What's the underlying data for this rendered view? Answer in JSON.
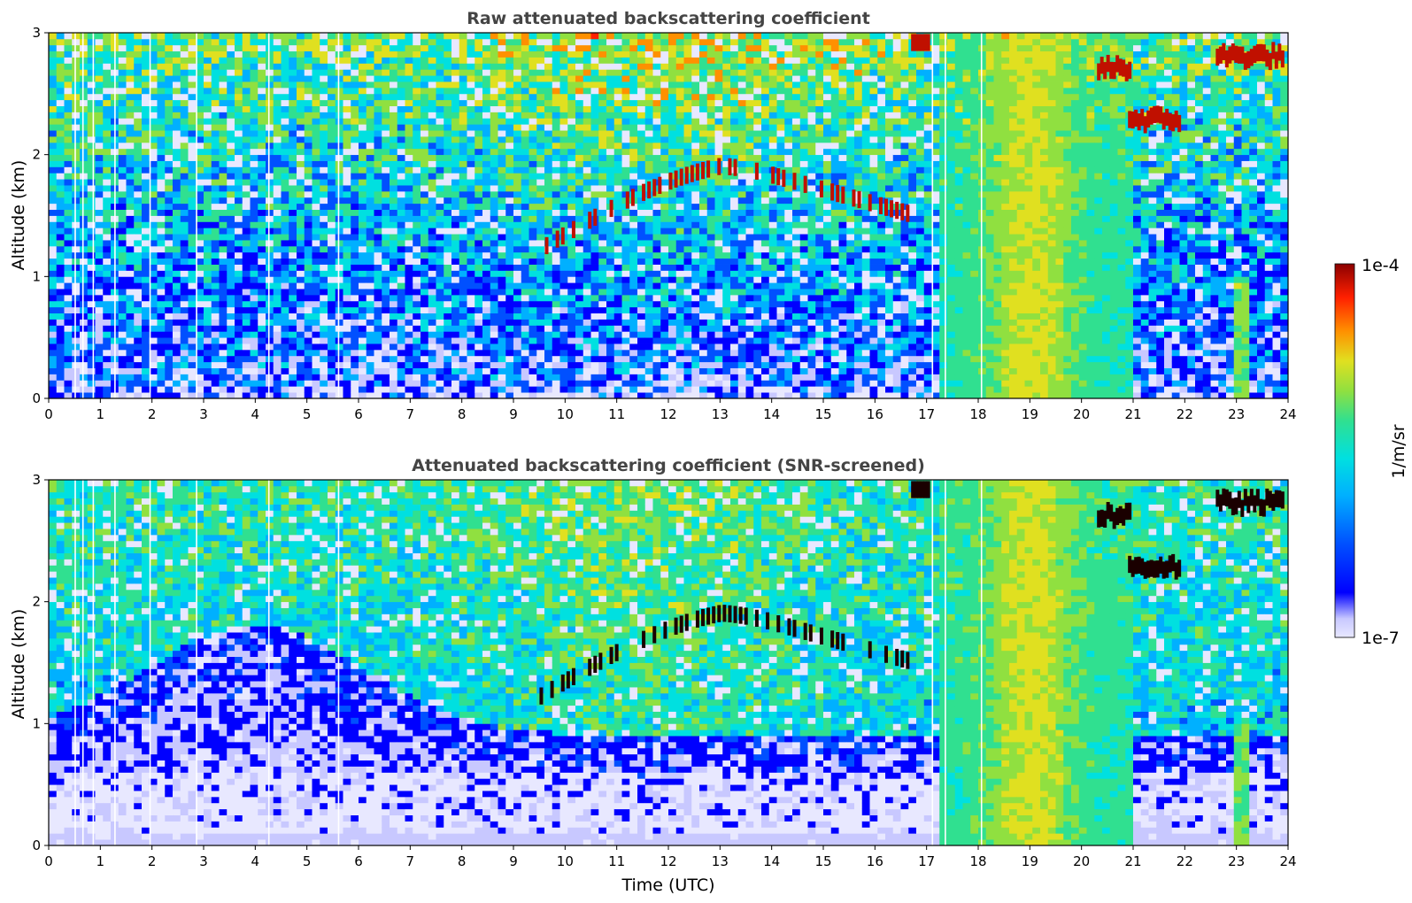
{
  "colors": {
    "colormap": [
      "#e8e8ff",
      "#c8c8ff",
      "#0000ff",
      "#0050ff",
      "#00b0ff",
      "#00e0e0",
      "#30e090",
      "#90e040",
      "#e0e020",
      "#ff9000",
      "#ff2000",
      "#8b0000"
    ],
    "background": "#ffffff",
    "title": "#444444"
  },
  "colorbar": {
    "max_label": "1e-4",
    "min_label": "1e-7",
    "unit_label": "1/m/sr",
    "scale": "log",
    "range": [
      1e-07,
      0.0001
    ]
  },
  "chart_data": [
    {
      "type": "heatmap",
      "title": "Raw attenuated backscattering coefficient",
      "xlabel": "",
      "ylabel": "Altitude (km)",
      "xlim": [
        0,
        24
      ],
      "ylim": [
        0,
        3
      ],
      "x_ticks": [
        "0",
        "1",
        "2",
        "3",
        "4",
        "5",
        "6",
        "7",
        "8",
        "9",
        "10",
        "11",
        "12",
        "13",
        "14",
        "15",
        "16",
        "17",
        "18",
        "19",
        "20",
        "21",
        "22",
        "23",
        "24"
      ],
      "y_ticks": [
        "0",
        "1",
        "2",
        "3"
      ],
      "features": {
        "surface_layer_km": [
          0,
          0.3
        ],
        "cloud_layer_times_utc": [
          9.4,
          16.6
        ],
        "cloud_layer_altitude_km": [
          1.2,
          1.95
        ],
        "precipitation_times_utc": [
          17.2,
          21.0
        ],
        "upper_cloud_times_utc": [
          16.7,
          23.9
        ],
        "upper_cloud_altitude_km": [
          2.2,
          3.0
        ]
      }
    },
    {
      "type": "heatmap",
      "title": "Attenuated backscattering coefficient (SNR-screened)",
      "xlabel": "Time (UTC)",
      "ylabel": "Altitude (km)",
      "xlim": [
        0,
        24
      ],
      "ylim": [
        0,
        3
      ],
      "x_ticks": [
        "0",
        "1",
        "2",
        "3",
        "4",
        "5",
        "6",
        "7",
        "8",
        "9",
        "10",
        "11",
        "12",
        "13",
        "14",
        "15",
        "16",
        "17",
        "18",
        "19",
        "20",
        "21",
        "22",
        "23",
        "24"
      ],
      "y_ticks": [
        "0",
        "1",
        "2",
        "3"
      ],
      "features": {
        "boundary_layer_top_km": [
          0.9,
          1.8
        ],
        "cloud_layer_times_utc": [
          9.4,
          16.6
        ],
        "cloud_layer_altitude_km": [
          1.2,
          1.95
        ],
        "precipitation_times_utc": [
          17.2,
          21.0
        ]
      }
    }
  ]
}
